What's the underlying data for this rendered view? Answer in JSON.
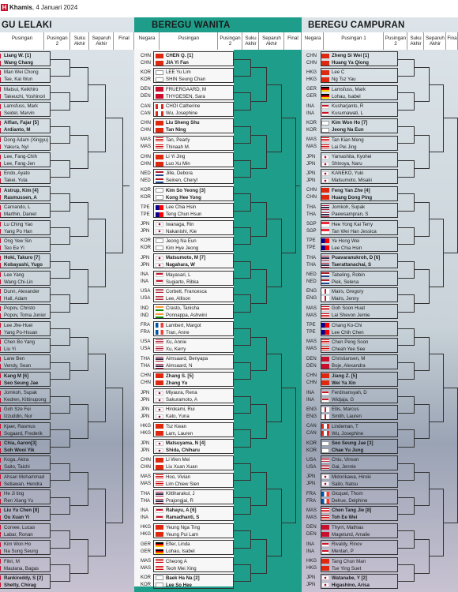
{
  "header": {
    "logo": "H",
    "day": "Khamis",
    "date": ", 4 Januari 2024"
  },
  "colors": {
    "accent": "#c8102e",
    "middle_panel": "#1e9e8a",
    "bg": "#dde5ea"
  },
  "sections": {
    "lelaki": {
      "title": "GU LELAKI",
      "columns": [
        "Pusingan",
        "Pusingan 2",
        "Suku Akhir",
        "Separuh Akhir",
        "Final"
      ],
      "entries": [
        [
          "Liang W. [1]",
          "Wang Chang",
          true
        ],
        [
          "Man Wei Chong",
          "Tee, Kai Wun",
          false
        ],
        [
          "Matsui, Keikhiro",
          "Takeuchi, Yoshinori",
          false
        ],
        [
          "Lamsfuss, Mark",
          "Seidel, Marvin",
          false
        ],
        [
          "Alfian, Fajar [5]",
          "Ardianto, M",
          true
        ],
        [
          "Dong Adam (Xingyu)",
          "Yakura, Nyl",
          false
        ],
        [
          "Lee, Fang-Chih",
          "Lee, Fang-Jen",
          false
        ],
        [
          "Endo, Ayato",
          "Takei, Yuta",
          false
        ],
        [
          "Astrup, Kim [4]",
          "Rasmussen, A",
          true
        ],
        [
          "Carnando, L",
          "Marthin, Daniel",
          false
        ],
        [
          "Lu Ching Yao",
          "Yang Po Han",
          false
        ],
        [
          "Ong Yew Sin",
          "Teo Ee Yi",
          false
        ],
        [
          "Hoki, Takuro [7]",
          "Kobayashi, Yugo",
          true
        ],
        [
          "Lee Yang",
          "Wang Chi-Lin",
          false
        ],
        [
          "Dunn, Alexander",
          "Hall, Adam",
          false
        ],
        [
          "Popov, Christo",
          "Popov, Toma Junior",
          false
        ],
        [
          "Lee Jhe-Huei",
          "Yang Po-Hsuan",
          false
        ],
        [
          "Chen Bo Yang",
          "Liu Yi",
          false
        ],
        [
          "Lane Ben",
          "Vendy, Sean",
          false
        ],
        [
          "Kang M [6]",
          "Seo Seung Jae",
          true
        ],
        [
          "Jomkoh, Supak",
          "Kedren, Kittinupong",
          false
        ],
        [
          "Goh Sze Fei",
          "Izzuddin, Nur",
          false
        ],
        [
          "Kjaer, Rasmus",
          "Sogaard, Frederik",
          false
        ],
        [
          "Chia, Aaron[3]",
          "Soh Wooi Yik",
          true
        ],
        [
          "Koga, Akira",
          "Saito, Taichi",
          false
        ],
        [
          "Ahsan Mohammad",
          "Setiawan, Hendra",
          false
        ],
        [
          "He Ji ting",
          "Ren Xiang Yu",
          false
        ],
        [
          "Liu Yu Chen [8]",
          "Ou Xuan Yi",
          true
        ],
        [
          "Corvee, Lucas",
          "Labar, Ronan",
          false
        ],
        [
          "Kim Won Ho",
          "Na Sung Seung",
          false
        ],
        [
          "Fikri, M",
          "Maulana, Bagas",
          false
        ],
        [
          "Rankireddy, S [2]",
          "Shetty, Chirag",
          true
        ]
      ]
    },
    "wanita": {
      "title": "BEREGU WANITA",
      "columns": [
        "Negara",
        "Pusingan",
        "Pusingan 2",
        "Suku Akhir",
        "Separuh Akhir",
        "Final"
      ],
      "entries": [
        [
          "CHN",
          "CHN",
          "CHEN Q. [1]",
          "JIA Yi Fan",
          true
        ],
        [
          "KOR",
          "KOR",
          "LEE Yu Lim",
          "SHIN Seung Chan",
          false
        ],
        [
          "DEN",
          "DEN",
          "FRUERGAARD, M",
          "THYGESEN, Sara",
          false
        ],
        [
          "CAN",
          "CAN",
          "CHOI Catherine",
          "Wu, Josephine",
          false
        ],
        [
          "CHN",
          "CHN",
          "Liu Sheng Shu",
          "Tan Ning",
          true
        ],
        [
          "MAS",
          "MAS",
          "Tan, Pearly",
          "Thinaah M.",
          false
        ],
        [
          "CHN",
          "CHN",
          "Li Yi Jing",
          "Luo Xu Min",
          false
        ],
        [
          "NED",
          "NED",
          "Jille, Debora",
          "Seinen, Cheryl",
          false
        ],
        [
          "KOR",
          "KOR",
          "Kim So Yeong [3]",
          "Kong Hee Yong",
          true
        ],
        [
          "TPE",
          "TPE",
          "Lee Chia Hsin",
          "Teng Chun Hsun",
          false
        ],
        [
          "JPN",
          "JPN",
          "Iwanaga, Rin",
          "Nakanishi, Kie",
          false
        ],
        [
          "KOR",
          "KOR",
          "Jeong Na Eun",
          "Kim Hye Jeong",
          false
        ],
        [
          "JPN",
          "JPN",
          "Matsumoto, M [7]",
          "Nagahara, W",
          true
        ],
        [
          "INA",
          "INA",
          "Mayasari, L",
          "Sugiarto, Ribka",
          false
        ],
        [
          "USA",
          "USA",
          "Corbett, Francesca",
          "Lee, Allison",
          false
        ],
        [
          "IND",
          "IND",
          "Crasto, Tanisha",
          "Ponnappa, Ashwini",
          false
        ],
        [
          "FRA",
          "FRA",
          "Lambert, Margot",
          "Tran, Anne",
          false
        ],
        [
          "USA",
          "USA",
          "Xu, Annie",
          "Xu, Kerry",
          false
        ],
        [
          "THA",
          "THA",
          "Aimsaard, Benyapa",
          "Aimsaard, N",
          false
        ],
        [
          "CHN",
          "CHN",
          "Zhang S. [5]",
          "Zhang Yu",
          true
        ],
        [
          "JPN",
          "JPN",
          "Miyaura, Rena",
          "Sakuramoto, A",
          false
        ],
        [
          "JPN",
          "JPN",
          "Hirokami, Rui",
          "Kato, Yuna",
          false
        ],
        [
          "HKG",
          "HKG",
          "Tsz Kwan",
          "Lam, Lauren",
          false
        ],
        [
          "JPN",
          "JPN",
          "Matsuyama, N [4]",
          "Shida, Chiharu",
          true
        ],
        [
          "CHN",
          "CHN",
          "Li Wen Mei",
          "Liu Xuan Xuan",
          false
        ],
        [
          "MAS",
          "MAS",
          "Hoo, Vivian",
          "Lim Chiew Sien",
          false
        ],
        [
          "THA",
          "THA",
          "Kittiharakul, J",
          "Prajongjai, R",
          false
        ],
        [
          "INA",
          "INA",
          "Rahayu, A [6]",
          "Ramadhanti, S",
          true
        ],
        [
          "HKG",
          "HKG",
          "Yeung Nga Ting",
          "Yeung Pui Lam",
          false
        ],
        [
          "GER",
          "GER",
          "Efler, Linda",
          "Lohau, Isabel",
          false
        ],
        [
          "MAS",
          "MAS",
          "Cheong A",
          "Teoh Mei Xing",
          false
        ],
        [
          "KOR",
          "KOR",
          "Baek Ha Na [2]",
          "Lee So Hee",
          true
        ]
      ]
    },
    "campuran": {
      "title": "BEREGU CAMPURAN",
      "columns": [
        "Negara",
        "Pusingan 1",
        "Pusingan 2",
        "Suku Akhir",
        "Separuh Akhir",
        "Fina"
      ],
      "entries": [
        [
          "CHN",
          "CHN",
          "Zheng Si Wei [1]",
          "Huang Ya Qiong",
          true
        ],
        [
          "HKG",
          "HKG",
          "Lee C",
          "Ng Tsz Yau",
          false
        ],
        [
          "GER",
          "GER",
          "Lamsfuss, Mark",
          "Lohau, Isabel",
          false
        ],
        [
          "INA",
          "INA",
          "Kusharjanto, R",
          "Kusumawati, L",
          false
        ],
        [
          "KOR",
          "KOR",
          "Kim Won Ho [7]",
          "Jeong Na Eun",
          true
        ],
        [
          "MAS",
          "MAS",
          "Tan Kian Meng",
          "Lai Pei Jing",
          false
        ],
        [
          "JPN",
          "JPN",
          "Yamashita, Kyohei",
          "Shinoya, Naru",
          false
        ],
        [
          "JPN",
          "JPN",
          "KANEKO, Yuki",
          "Matsumoto, Misaki",
          false
        ],
        [
          "CHN",
          "CHN",
          "Feng Yan Zhe [4]",
          "Huang Dong Ping",
          true
        ],
        [
          "THA",
          "THA",
          "Jomkoh, Supak",
          "Paewsampran, S",
          false
        ],
        [
          "SGP",
          "SGP",
          "Hee Yong Kai Terry",
          "Tan Wei Han Jessica",
          false
        ],
        [
          "TPE",
          "TPE",
          "Ye Hong Wei",
          "Lee Chia Hsin",
          false
        ],
        [
          "THA",
          "THA",
          "Puavaranukroh, D [6]",
          "Taerattanachai, S",
          true
        ],
        [
          "NED",
          "NED",
          "Tabeling, Robin",
          "Piek, Selena",
          false
        ],
        [
          "ENG",
          "ENG",
          "Mairs, Gregory",
          "Mairs, Jenny",
          false
        ],
        [
          "MAS",
          "MAS",
          "Goh Soon Huat",
          "Lai Shevon Jemie",
          false
        ],
        [
          "TPE",
          "TPE",
          "Chang Ko-Chi",
          "Lee Chih Chen",
          false
        ],
        [
          "MAS",
          "MAS",
          "Chen Peng Soon",
          "Cheah Yee See",
          false
        ],
        [
          "DEN",
          "DEN",
          "Christiansen, M",
          "Boje, Alexandra",
          false
        ],
        [
          "CHN",
          "CHN",
          "Jiang Z. [5]",
          "Wei Ya Xin",
          true
        ],
        [
          "INA",
          "INA",
          "Ferdinansyah, D",
          "Widjaja, G",
          false
        ],
        [
          "ENG",
          "ENG",
          "Ellis, Marcus",
          "Smith, Lauren",
          false
        ],
        [
          "CAN",
          "CAN",
          "Lindeman, T",
          "Wu, Josephine",
          false
        ],
        [
          "KOR",
          "KOR",
          "Seo Seung Jae [3]",
          "Chae Yu Jung",
          true
        ],
        [
          "USA",
          "USA",
          "Chiu, Vinson",
          "Gai, Jennie",
          false
        ],
        [
          "JPN",
          "JPN",
          "Midorikawa, Hiroki",
          "Saito, Natsu",
          false
        ],
        [
          "FRA",
          "FRA",
          "Gicquel, Thom",
          "Delrue, Delphine",
          false
        ],
        [
          "MAS",
          "MAS",
          "Chen Tang Jie [8]",
          "Toh Ee Wei",
          true
        ],
        [
          "DEN",
          "DEN",
          "Thyrri, Mathias",
          "Magelund, Amalie",
          false
        ],
        [
          "INA",
          "INA",
          "Rivaldy, Rinov",
          "Mentari, P",
          false
        ],
        [
          "HKG",
          "HKG",
          "Tang Chun Man",
          "Tse Ying Suet",
          false
        ],
        [
          "JPN",
          "JPN",
          "Watanabe, Y [2]",
          "Higashino, Arisa",
          true
        ]
      ]
    }
  }
}
